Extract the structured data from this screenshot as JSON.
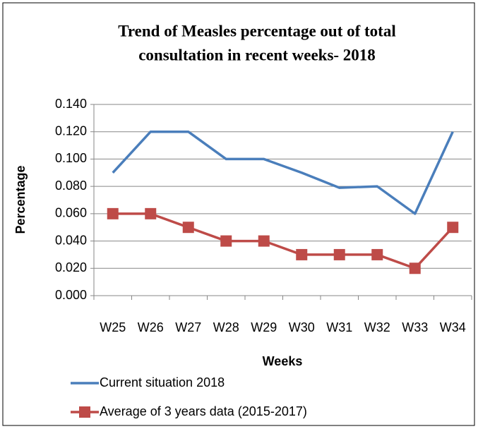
{
  "chart_data": {
    "type": "line",
    "title": [
      "Trend of Measles percentage out of total",
      "consultation in recent weeks- 2018"
    ],
    "x_label": "Weeks",
    "y_label": "Percentage",
    "categories": [
      "W25",
      "W26",
      "W27",
      "W28",
      "W29",
      "W30",
      "W31",
      "W32",
      "W33",
      "W34"
    ],
    "series": [
      {
        "name": "Current situation 2018",
        "color": "#4a7ebb",
        "marker": "none",
        "values": [
          0.09,
          0.12,
          0.12,
          0.1,
          0.1,
          0.09,
          0.079,
          0.08,
          0.06,
          0.12
        ]
      },
      {
        "name": "Average of 3 years data (2015-2017)",
        "color": "#be4b48",
        "marker": "square",
        "values": [
          0.06,
          0.06,
          0.05,
          0.04,
          0.04,
          0.03,
          0.03,
          0.03,
          0.02,
          0.05
        ]
      }
    ],
    "ylim": [
      0,
      0.14
    ],
    "yticks": [
      {
        "value": 0,
        "label": "0.000"
      },
      {
        "value": 0.02,
        "label": "0.020"
      },
      {
        "value": 0.04,
        "label": "0.040"
      },
      {
        "value": 0.06,
        "label": "0.060"
      },
      {
        "value": 0.08,
        "label": "0.080"
      },
      {
        "value": 0.1,
        "label": "0.100"
      },
      {
        "value": 0.12,
        "label": "0.120"
      },
      {
        "value": 0.14,
        "label": "0.140"
      }
    ],
    "grid": true,
    "legend": "bottom"
  }
}
